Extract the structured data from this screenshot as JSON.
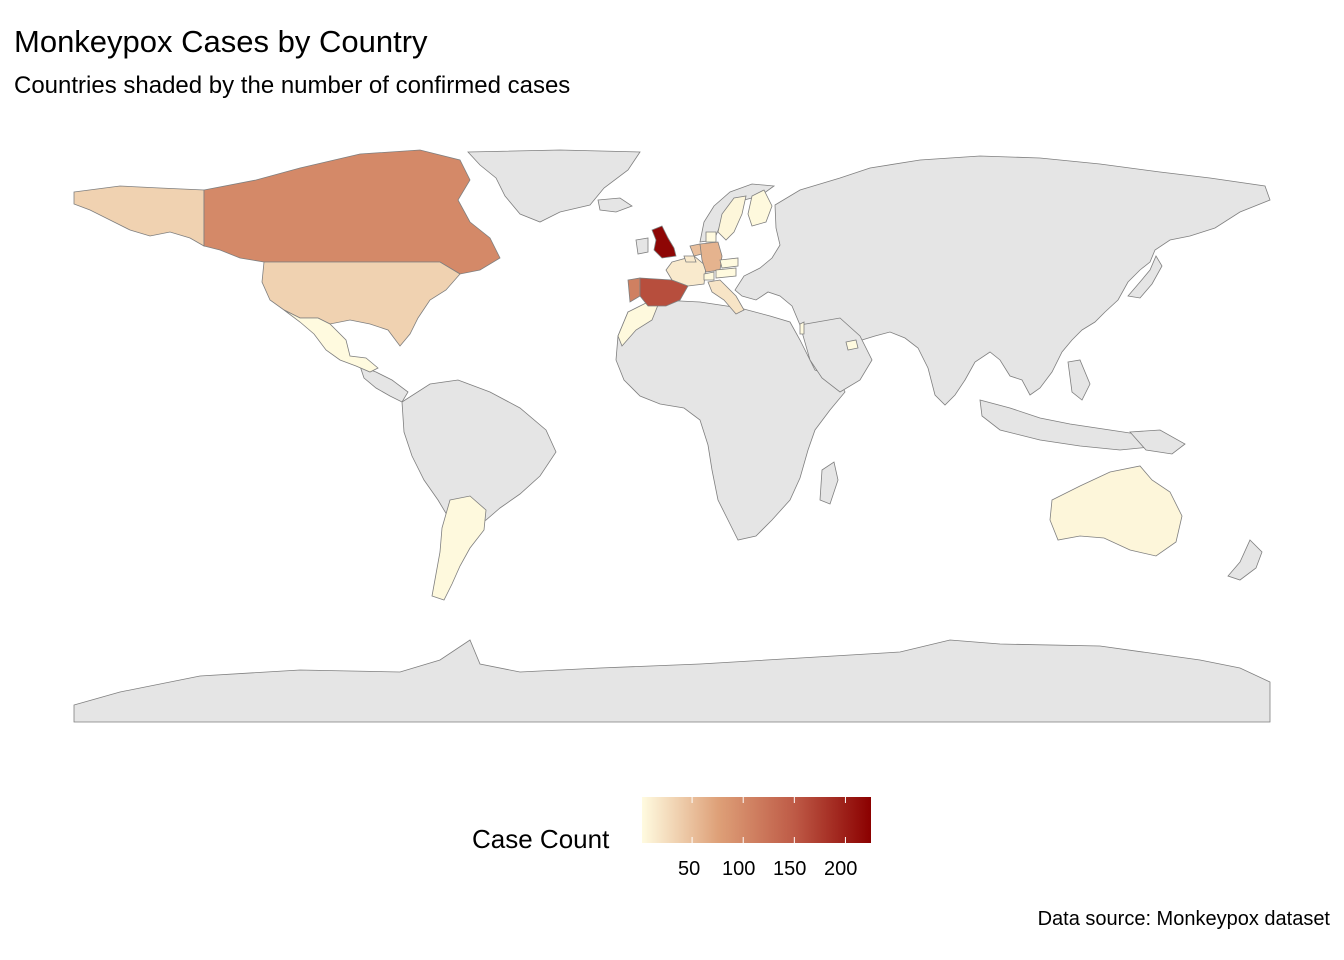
{
  "title": "Monkeypox Cases by Country",
  "subtitle": "Countries shaded by the number of confirmed cases",
  "caption": "Data source: Monkeypox dataset",
  "legend": {
    "title": "Case Count",
    "ticks": [
      "50",
      "100",
      "150",
      "200"
    ],
    "tick_values": [
      50,
      100,
      150,
      200
    ],
    "range": [
      1,
      225
    ],
    "low_color": "#FFFBE0",
    "high_color": "#8B0000"
  },
  "colors": {
    "land": "#e5e5e5",
    "border": "#7f7f7f"
  },
  "countries": [
    {
      "name": "United Kingdom",
      "cases": 220
    },
    {
      "name": "Spain",
      "cases": 160
    },
    {
      "name": "Portugal",
      "cases": 110
    },
    {
      "name": "Canada",
      "cases": 100
    },
    {
      "name": "Germany",
      "cases": 60
    },
    {
      "name": "United States",
      "cases": 35
    },
    {
      "name": "Alaska (US)",
      "cases": 35
    },
    {
      "name": "Netherlands",
      "cases": 50
    },
    {
      "name": "France",
      "cases": 15
    },
    {
      "name": "Italy",
      "cases": 20
    },
    {
      "name": "Belgium",
      "cases": 15
    },
    {
      "name": "Sweden",
      "cases": 5
    },
    {
      "name": "Finland",
      "cases": 3
    },
    {
      "name": "Australia",
      "cases": 5
    },
    {
      "name": "Argentina",
      "cases": 3
    },
    {
      "name": "Mexico",
      "cases": 2
    },
    {
      "name": "Morocco",
      "cases": 3
    },
    {
      "name": "Switzerland",
      "cases": 3
    },
    {
      "name": "Austria",
      "cases": 2
    },
    {
      "name": "Czechia",
      "cases": 2
    },
    {
      "name": "Denmark",
      "cases": 2
    },
    {
      "name": "Israel",
      "cases": 2
    },
    {
      "name": "United Arab Emirates",
      "cases": 2
    }
  ]
}
